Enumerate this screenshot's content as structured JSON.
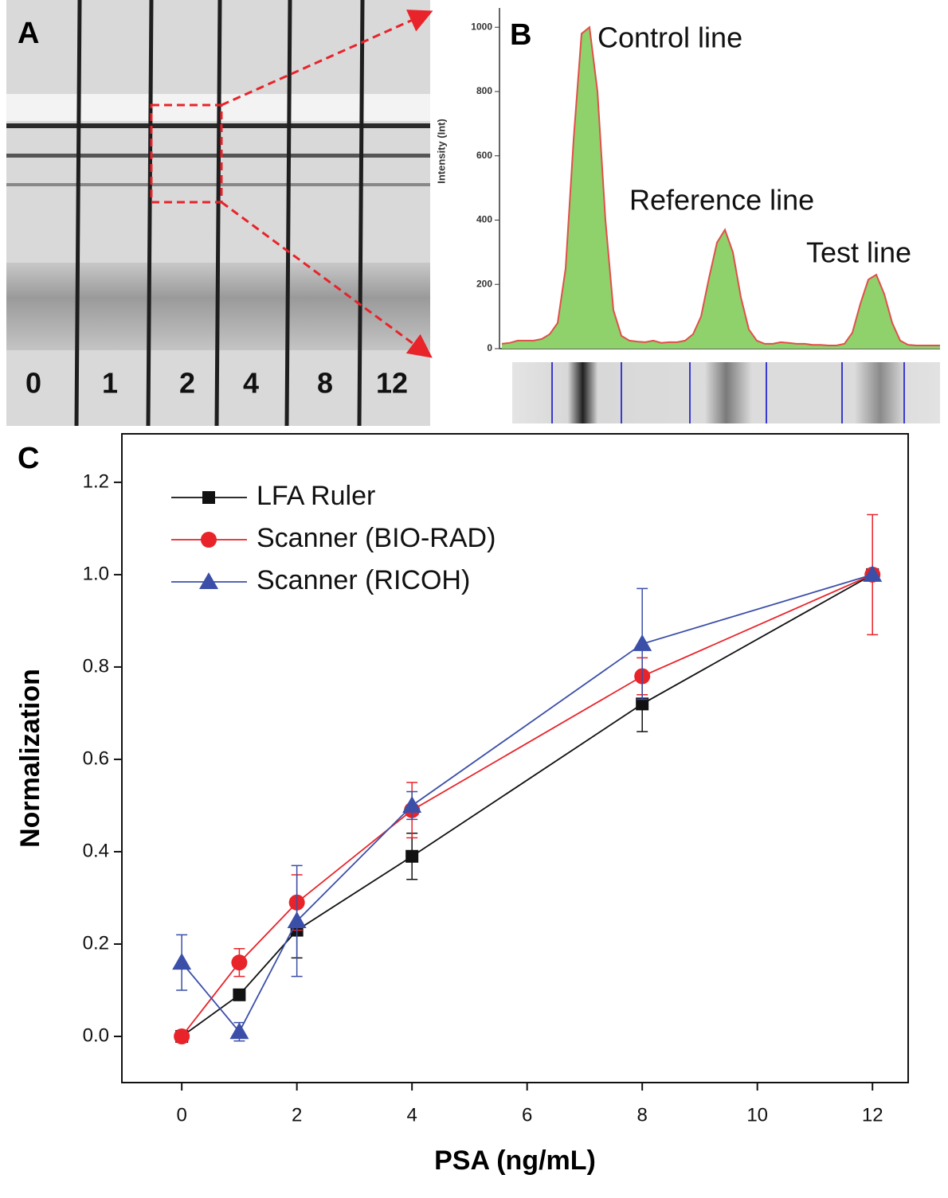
{
  "panel_a": {
    "label": "A",
    "lane_labels": [
      "0",
      "1",
      "2",
      "4",
      "8",
      "12"
    ]
  },
  "chart_data": [
    {
      "type": "area",
      "panel_label": "B",
      "y_label": "Intensity (Int)",
      "values": [
        15,
        18,
        25,
        25,
        25,
        30,
        45,
        80,
        250,
        650,
        980,
        1000,
        800,
        400,
        120,
        40,
        25,
        22,
        20,
        25,
        18,
        20,
        20,
        25,
        45,
        100,
        220,
        330,
        370,
        300,
        160,
        60,
        25,
        15,
        15,
        20,
        18,
        15,
        15,
        12,
        12,
        10,
        10,
        15,
        50,
        140,
        215,
        230,
        170,
        80,
        25,
        12,
        10,
        10,
        10,
        10
      ],
      "fill_color": "#8fd16a",
      "line_color": "#e0504a",
      "ylim": [
        0,
        1060
      ],
      "yticks": [
        0,
        200,
        400,
        600,
        800,
        1000
      ],
      "annotations": [
        "Control line",
        "Reference line",
        "Test line"
      ]
    },
    {
      "type": "line",
      "panel_label": "C",
      "x_label": "PSA (ng/mL)",
      "y_label": "Normalization",
      "x": [
        0,
        1,
        2,
        4,
        8,
        12
      ],
      "series": [
        {
          "name": "LFA Ruler",
          "color": "#111111",
          "marker": "square",
          "values": [
            0,
            0.09,
            0.23,
            0.39,
            0.72,
            1.0
          ],
          "errors": [
            0,
            0,
            0.06,
            0.05,
            0.06,
            0
          ]
        },
        {
          "name": "Scanner (BIO-RAD)",
          "color": "#e8232a",
          "marker": "circle",
          "values": [
            0,
            0.16,
            0.29,
            0.49,
            0.78,
            1.0
          ],
          "errors": [
            0,
            0.03,
            0.06,
            0.06,
            0.04,
            0.13
          ]
        },
        {
          "name": "Scanner (RICOH)",
          "color": "#3b4fa8",
          "marker": "triangle",
          "values": [
            0.16,
            0.01,
            0.25,
            0.5,
            0.85,
            1.0
          ],
          "errors": [
            0.06,
            0.02,
            0.12,
            0.03,
            0.12,
            0
          ]
        }
      ],
      "xlim": [
        -1.04,
        12.62
      ],
      "ylim": [
        -0.1,
        1.305
      ],
      "xticks": [
        0,
        2,
        4,
        6,
        8,
        10,
        12
      ],
      "yticks": [
        {
          "value": 0,
          "label": "0.0"
        },
        {
          "value": 0.2,
          "label": "0.2"
        },
        {
          "value": 0.4,
          "label": "0.4"
        },
        {
          "value": 0.6,
          "label": "0.6"
        },
        {
          "value": 0.8,
          "label": "0.8"
        },
        {
          "value": 1.0,
          "label": "1.0"
        },
        {
          "value": 1.2,
          "label": "1.2"
        }
      ],
      "legend": "top-left"
    }
  ]
}
